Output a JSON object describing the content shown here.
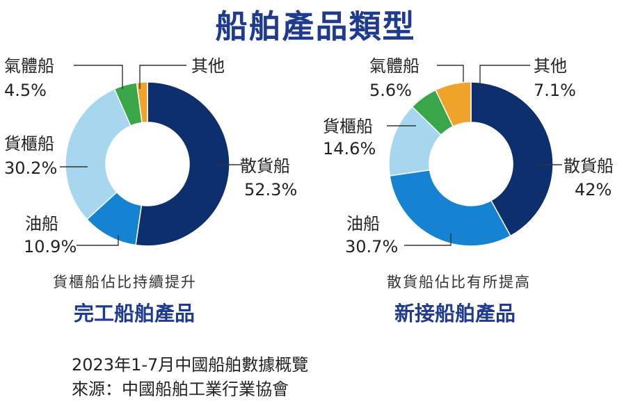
{
  "title": "船舶產品類型",
  "colors": {
    "散貨船": "#0d2f6e",
    "油船": "#1583d1",
    "貨櫃船": "#a6d7ee",
    "氣體船": "#3aa64a",
    "其他": "#f0a32a",
    "title": "#1f3b8f"
  },
  "chart_data": [
    {
      "type": "pie",
      "subtitle": "完工船舶產品",
      "caption": "貨櫃船佔比持續提升",
      "slices": [
        {
          "label": "散貨船",
          "value": 52.3,
          "value_label": "52.3%"
        },
        {
          "label": "油船",
          "value": 10.9,
          "value_label": "10.9%"
        },
        {
          "label": "貨櫃船",
          "value": 30.2,
          "value_label": "30.2%"
        },
        {
          "label": "氣體船",
          "value": 4.5,
          "value_label": "4.5%"
        },
        {
          "label": "其他",
          "value": 2.1,
          "value_label": ""
        }
      ]
    },
    {
      "type": "pie",
      "subtitle": "新接船舶產品",
      "caption": "散貨船佔比有所提高",
      "slices": [
        {
          "label": "散貨船",
          "value": 42,
          "value_label": "42%"
        },
        {
          "label": "油船",
          "value": 30.7,
          "value_label": "30.7%"
        },
        {
          "label": "貨櫃船",
          "value": 14.6,
          "value_label": "14.6%"
        },
        {
          "label": "氣體船",
          "value": 5.6,
          "value_label": "5.6%"
        },
        {
          "label": "其他",
          "value": 7.1,
          "value_label": "7.1%"
        }
      ]
    }
  ],
  "footer": {
    "line1": "2023年1-7月中國船舶數據概覽",
    "line2": "來源：中國船舶工業行業協會"
  }
}
